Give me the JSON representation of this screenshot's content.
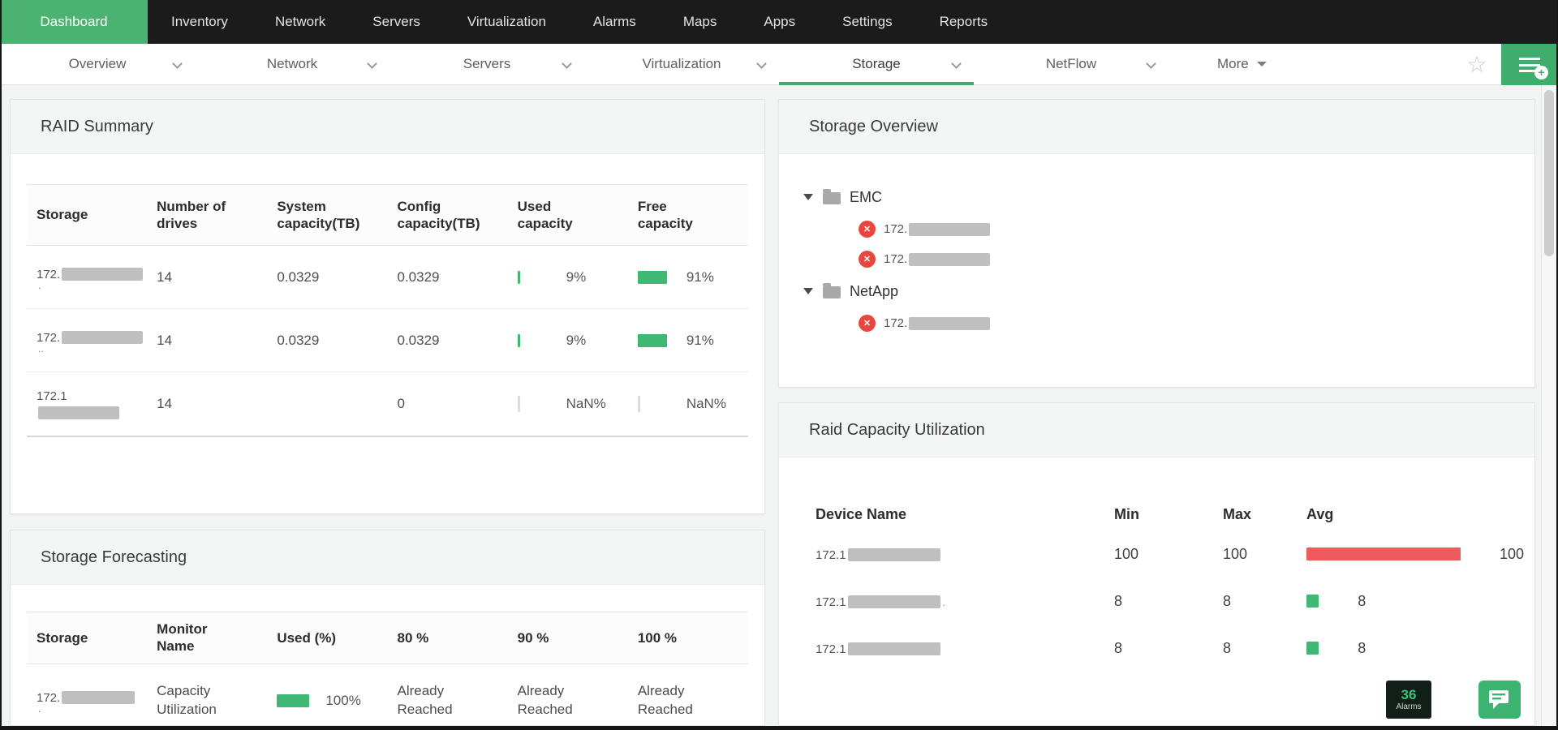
{
  "colors": {
    "green": "#3fb874",
    "red": "#ef5a5a"
  },
  "topnav": {
    "active": "Dashboard",
    "items": [
      "Dashboard",
      "Inventory",
      "Network",
      "Servers",
      "Virtualization",
      "Alarms",
      "Maps",
      "Apps",
      "Settings",
      "Reports"
    ]
  },
  "tabbar": {
    "active": "Storage",
    "tabs": [
      "Overview",
      "Network",
      "Servers",
      "Virtualization",
      "Storage",
      "NetFlow"
    ],
    "more_label": "More"
  },
  "panels": {
    "raid_summary": {
      "title": "RAID Summary",
      "columns": [
        "Storage",
        "Number of drives",
        "System capacity(TB)",
        "Config capacity(TB)",
        "Used capacity",
        "Free capacity"
      ],
      "rows": [
        {
          "storage_prefix": "172.",
          "sub": ".",
          "drives": "14",
          "system_capacity": "0.0329",
          "config_capacity": "0.0329",
          "used_pct": "9",
          "used_label": "9%",
          "free_pct": "91",
          "free_label": "91%"
        },
        {
          "storage_prefix": "172.",
          "sub": "..",
          "drives": "14",
          "system_capacity": "0.0329",
          "config_capacity": "0.0329",
          "used_pct": "9",
          "used_label": "9%",
          "free_pct": "91",
          "free_label": "91%"
        },
        {
          "storage_prefix": "172.1",
          "sub": "",
          "drives": "14",
          "system_capacity": "",
          "config_capacity": "0",
          "used_label": "NaN%",
          "free_label": "NaN%"
        }
      ]
    },
    "storage_forecasting": {
      "title": "Storage Forecasting",
      "columns": [
        "Storage",
        "Monitor Name",
        "Used (%)",
        "80 %",
        "90 %",
        "100 %"
      ],
      "rows": [
        {
          "storage_prefix": "172.",
          "sub": ".",
          "monitor_name": "Capacity Utilization",
          "used_pct": "100",
          "used_label": "100%",
          "p80": "Already Reached",
          "p90": "Already Reached",
          "p100": "Already Reached"
        }
      ]
    },
    "storage_overview": {
      "title": "Storage Overview",
      "tree": [
        {
          "label": "EMC",
          "children": [
            {
              "prefix": "172."
            },
            {
              "prefix": "172."
            }
          ]
        },
        {
          "label": "NetApp",
          "children": [
            {
              "prefix": "172."
            }
          ]
        }
      ]
    },
    "raid_capacity": {
      "title": "Raid Capacity Utilization",
      "columns": [
        "Device Name",
        "Min",
        "Max",
        "Avg"
      ],
      "rows": [
        {
          "device_prefix": "172.1",
          "tail": "",
          "min": "100",
          "max": "100",
          "avg": "100",
          "bar_color": "red"
        },
        {
          "device_prefix": "172.1",
          "tail": ".",
          "min": "8",
          "max": "8",
          "avg": "8",
          "bar_color": "green"
        },
        {
          "device_prefix": "172.1",
          "tail": "",
          "min": "8",
          "max": "8",
          "avg": "8",
          "bar_color": "green"
        }
      ]
    }
  },
  "floating": {
    "alarm_count": "36",
    "alarm_label": "Alarms"
  }
}
